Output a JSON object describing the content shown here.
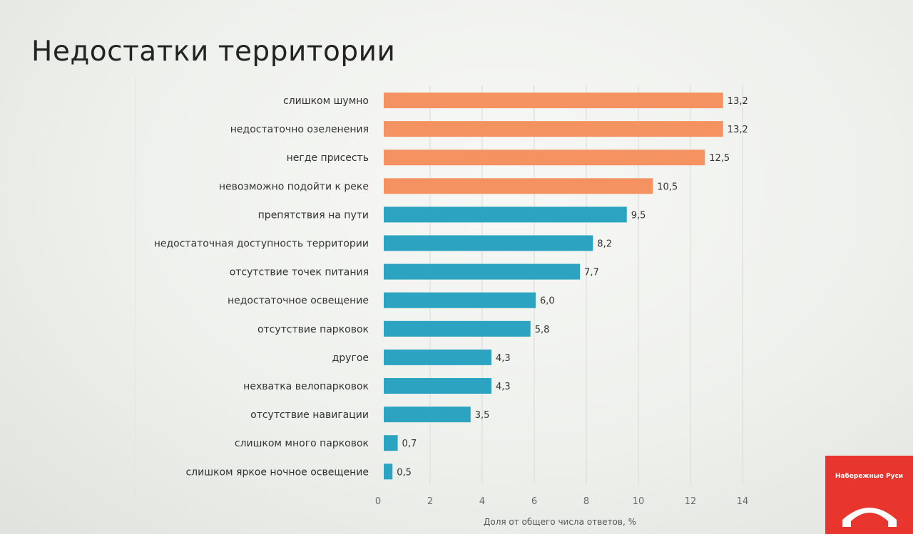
{
  "slide": {
    "title": "Недостатки территории"
  },
  "colors": {
    "highlight": "#f49361",
    "default": "#2ca3c0",
    "logo_bg": "#e8352d"
  },
  "logo": {
    "text": "Набережные Руси"
  },
  "chart_data": {
    "type": "bar",
    "orientation": "horizontal",
    "title": "Недостатки территории",
    "xlabel": "Доля от общего числа ответов, %",
    "ylabel": "",
    "xlim": [
      0,
      14
    ],
    "xticks": [
      0,
      2,
      4,
      6,
      8,
      10,
      12,
      14
    ],
    "grid": true,
    "categories": [
      "слишком шумно",
      "недостаточно озеленения",
      "негде присесть",
      "невозможно подойти к реке",
      "препятствия на пути",
      "недостаточная доступность территории",
      "отсутствие точек питания",
      "недостаточное освещение",
      "отсутствие парковок",
      "другое",
      "нехватка велопарковок",
      "отсутствие навигации",
      "слишком много парковок",
      "слишком яркое ночное освещение"
    ],
    "values": [
      13.2,
      13.2,
      12.5,
      10.5,
      9.5,
      8.2,
      7.7,
      6.0,
      5.8,
      4.3,
      4.3,
      3.5,
      0.7,
      0.5
    ],
    "value_labels": [
      "13,2",
      "13,2",
      "12,5",
      "10,5",
      "9,5",
      "8,2",
      "7,7",
      "6,0",
      "5,8",
      "4,3",
      "4,3",
      "3,5",
      "0,7",
      "0,5"
    ],
    "highlighted_count": 4
  }
}
